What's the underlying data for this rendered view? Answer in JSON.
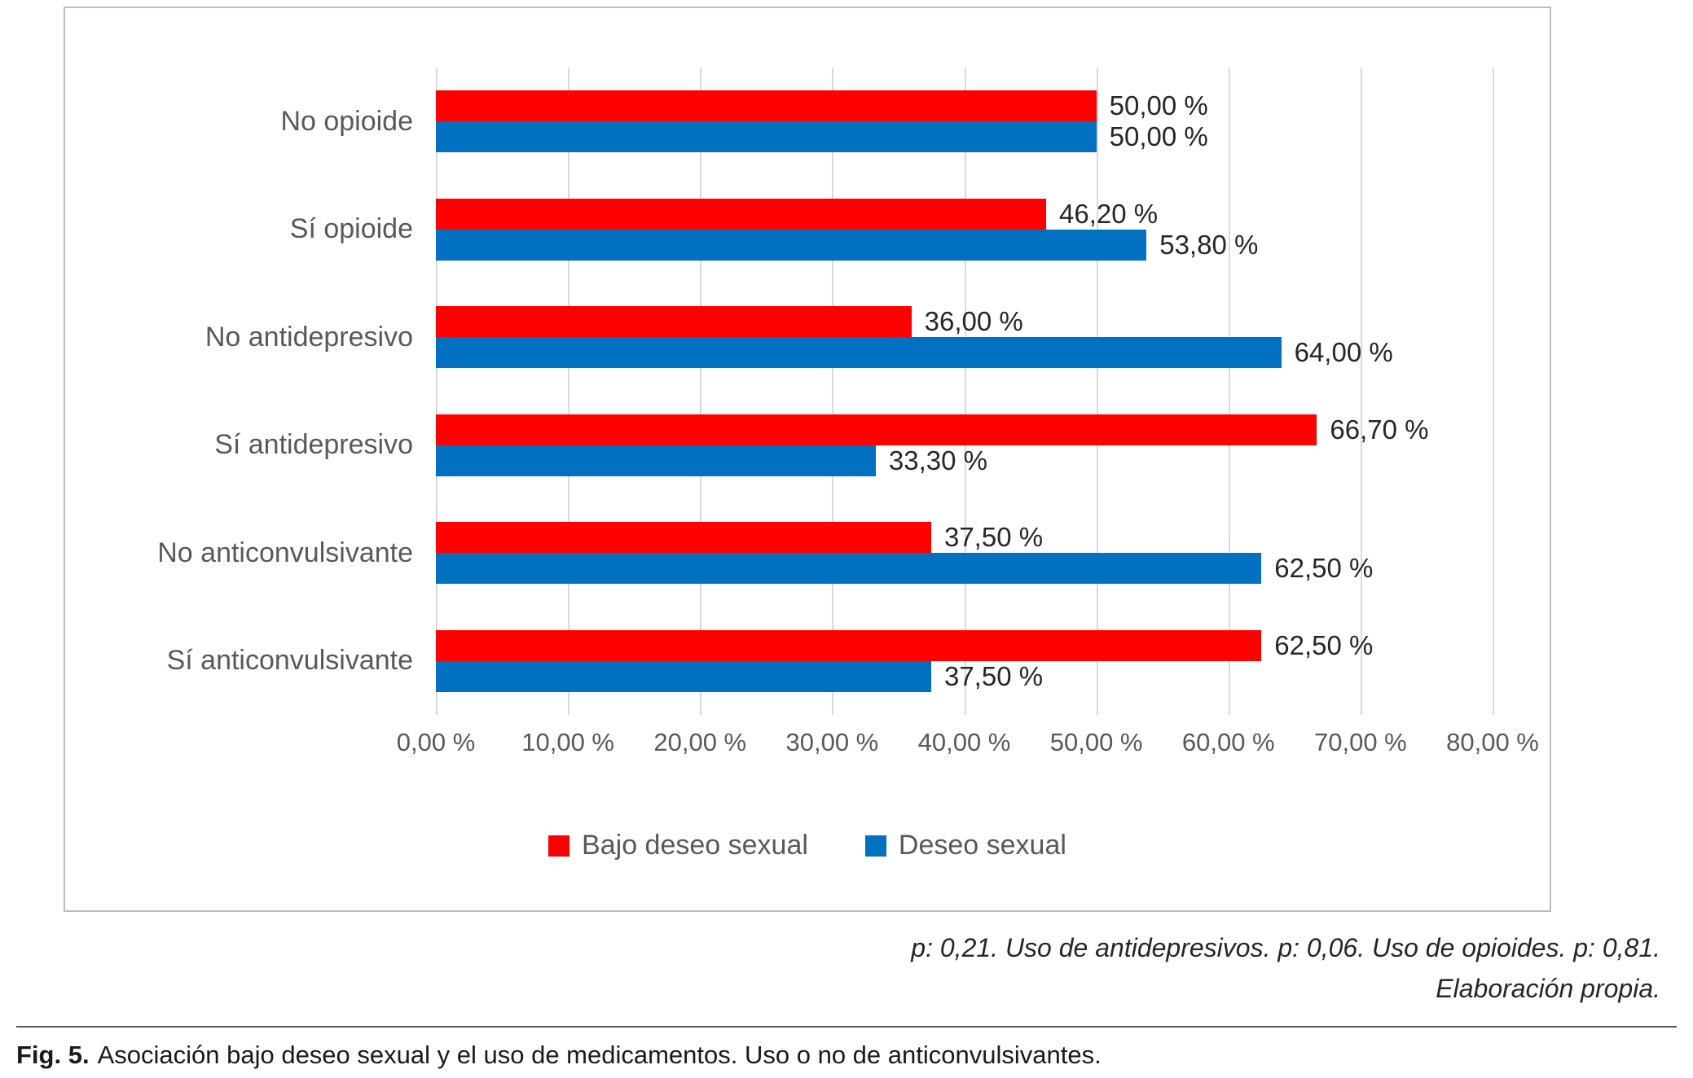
{
  "figure": {
    "caption_label": "Fig. 5.",
    "caption_text": "Asociación bajo deseo sexual y el uso de medicamentos. Uso o no de anticonvulsivantes.",
    "annotation_line1": "p: 0,21. Uso de antidepresivos. p: 0,06. Uso de opioides. p: 0,81.",
    "annotation_line2": "Elaboración propia."
  },
  "chart_data": {
    "type": "bar",
    "orientation": "horizontal",
    "title": "",
    "categories": [
      "No opioide",
      "Sí opioide",
      "No antidepresivo",
      "Sí antidepresivo",
      "No anticonvulsivante",
      "Sí anticonvulsivante"
    ],
    "series": [
      {
        "name": "Bajo deseo sexual",
        "color": "#FF0000",
        "values": [
          50.0,
          46.2,
          36.0,
          66.7,
          37.5,
          62.5
        ],
        "labels": [
          "50,00 %",
          "46,20 %",
          "36,00 %",
          "66,70 %",
          "37,50 %",
          "62,50 %"
        ]
      },
      {
        "name": "Deseo sexual",
        "color": "#0070C0",
        "values": [
          50.0,
          53.8,
          64.0,
          33.3,
          62.5,
          37.5
        ],
        "labels": [
          "50,00 %",
          "53,80 %",
          "64,00 %",
          "33,30 %",
          "62,50 %",
          "37,50 %"
        ]
      }
    ],
    "x_axis": {
      "min": 0,
      "max": 80,
      "step": 10,
      "tick_labels": [
        "0,00 %",
        "10,00 %",
        "20,00 %",
        "30,00 %",
        "40,00 %",
        "50,00 %",
        "60,00 %",
        "70,00 %",
        "80,00 %"
      ]
    },
    "legend": [
      {
        "label": "Bajo deseo sexual",
        "color": "#FF0000"
      },
      {
        "label": "Deseo sexual",
        "color": "#0070C0"
      }
    ],
    "grid": true,
    "legend_position": "bottom",
    "gridline_color": "#D9D9D9"
  }
}
